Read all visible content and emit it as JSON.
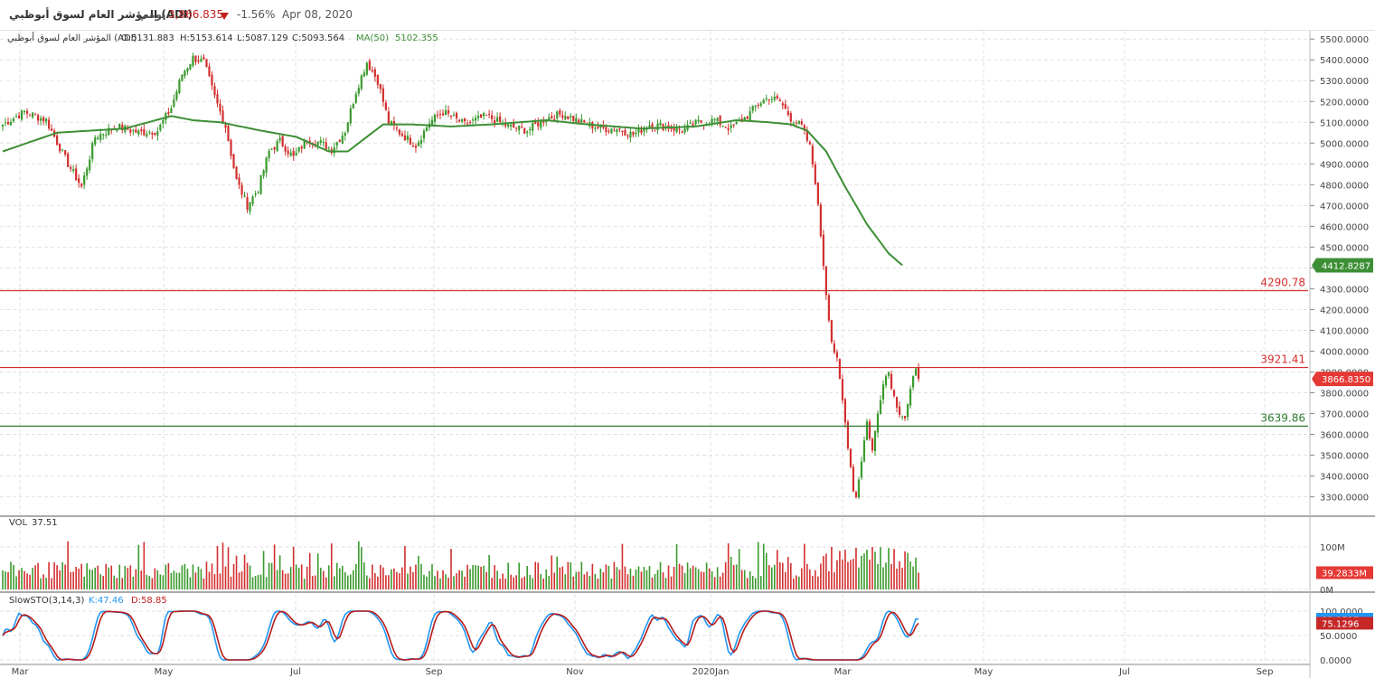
{
  "header": {
    "title": "المؤشر العام لسوق أبوظبي (ADI)",
    "interval": "يومي",
    "last_price": "3,866.835",
    "change_pct": "-1.56%",
    "date": "Apr 08, 2020"
  },
  "ohlc_legend": {
    "title": "المؤشر العام لسوق أبوظبي (ADI)",
    "open": "O:5131.883",
    "high": "H:5153.614",
    "low": "L:5087.129",
    "close": "C:5093.564",
    "ma_label": "MA(50)",
    "ma_value": "5102.355"
  },
  "volume_legend": {
    "label": "VOL",
    "value": "37.51"
  },
  "stoch_legend": {
    "label": "SlowSTO(3,14,3)",
    "k": "K:47.46",
    "d": "D:58.85"
  },
  "colors": {
    "up": "#3a9a2e",
    "down": "#d32f2f",
    "ma": "#3d8f35",
    "k_line": "#2196f3",
    "d_line": "#b71c1c",
    "grid": "#e2e2e2"
  },
  "chart_data": {
    "type": "candlestick",
    "x_axis_labels": [
      "Mar",
      "May",
      "Jul",
      "Sep",
      "Nov",
      "2020Jan",
      "Mar",
      "May",
      "Jul",
      "Sep"
    ],
    "price_axis": {
      "ticks": [
        "5500.0000",
        "5400.0000",
        "5300.0000",
        "5200.0000",
        "5100.0000",
        "5000.0000",
        "4900.0000",
        "4800.0000",
        "4700.0000",
        "4600.0000",
        "4500.0000",
        "4400.0000",
        "4300.0000",
        "4200.0000",
        "4100.0000",
        "4000.0000",
        "3900.0000",
        "3800.0000",
        "3700.0000",
        "3600.0000",
        "3500.0000",
        "3400.0000",
        "3300.0000"
      ],
      "ylim": [
        3220,
        5540
      ]
    },
    "price_path": [
      [
        0,
        5090
      ],
      [
        8,
        5150
      ],
      [
        16,
        5110
      ],
      [
        24,
        4900
      ],
      [
        29,
        4790
      ],
      [
        34,
        5030
      ],
      [
        42,
        5080
      ],
      [
        50,
        5050
      ],
      [
        57,
        5060
      ],
      [
        62,
        5170
      ],
      [
        66,
        5330
      ],
      [
        70,
        5410
      ],
      [
        74,
        5390
      ],
      [
        78,
        5220
      ],
      [
        82,
        5080
      ],
      [
        86,
        4820
      ],
      [
        90,
        4700
      ],
      [
        94,
        4780
      ],
      [
        98,
        4960
      ],
      [
        102,
        5010
      ],
      [
        107,
        4930
      ],
      [
        112,
        5020
      ],
      [
        117,
        5000
      ],
      [
        121,
        4970
      ],
      [
        126,
        5060
      ],
      [
        130,
        5250
      ],
      [
        134,
        5390
      ],
      [
        138,
        5300
      ],
      [
        142,
        5100
      ],
      [
        147,
        5040
      ],
      [
        152,
        4990
      ],
      [
        157,
        5100
      ],
      [
        162,
        5150
      ],
      [
        170,
        5090
      ],
      [
        178,
        5130
      ],
      [
        186,
        5080
      ],
      [
        193,
        5060
      ],
      [
        200,
        5120
      ],
      [
        206,
        5140
      ],
      [
        213,
        5100
      ],
      [
        220,
        5070
      ],
      [
        226,
        5070
      ],
      [
        232,
        5040
      ],
      [
        238,
        5090
      ],
      [
        244,
        5080
      ],
      [
        250,
        5060
      ],
      [
        256,
        5100
      ],
      [
        262,
        5110
      ],
      [
        268,
        5070
      ],
      [
        274,
        5130
      ],
      [
        278,
        5190
      ],
      [
        282,
        5220
      ],
      [
        286,
        5200
      ],
      [
        290,
        5120
      ],
      [
        294,
        5080
      ],
      [
        297,
        4980
      ],
      [
        299,
        4820
      ],
      [
        301,
        4560
      ],
      [
        303,
        4280
      ],
      [
        305,
        4050
      ],
      [
        307,
        3950
      ],
      [
        309,
        3760
      ],
      [
        311,
        3550
      ],
      [
        313,
        3340
      ],
      [
        314,
        3300
      ],
      [
        316,
        3480
      ],
      [
        318,
        3660
      ],
      [
        320,
        3520
      ],
      [
        322,
        3700
      ],
      [
        324,
        3860
      ],
      [
        326,
        3900
      ],
      [
        328,
        3780
      ],
      [
        330,
        3710
      ],
      [
        332,
        3680
      ],
      [
        334,
        3800
      ],
      [
        336,
        3930
      ],
      [
        337,
        3866.835
      ]
    ],
    "ma50": [
      [
        0,
        4960
      ],
      [
        20,
        5050
      ],
      [
        45,
        5070
      ],
      [
        62,
        5130
      ],
      [
        70,
        5110
      ],
      [
        80,
        5100
      ],
      [
        95,
        5060
      ],
      [
        108,
        5030
      ],
      [
        120,
        4960
      ],
      [
        127,
        4960
      ],
      [
        133,
        5020
      ],
      [
        140,
        5090
      ],
      [
        150,
        5090
      ],
      [
        165,
        5080
      ],
      [
        180,
        5090
      ],
      [
        200,
        5110
      ],
      [
        215,
        5090
      ],
      [
        235,
        5070
      ],
      [
        255,
        5080
      ],
      [
        270,
        5110
      ],
      [
        282,
        5100
      ],
      [
        290,
        5090
      ],
      [
        296,
        5060
      ],
      [
        303,
        4960
      ],
      [
        310,
        4790
      ],
      [
        318,
        4610
      ],
      [
        326,
        4470
      ],
      [
        331,
        4412.8287
      ]
    ],
    "price_highlights": [
      {
        "label": "4412.8287",
        "value": 4412.8287,
        "color": "#3d8f35"
      },
      {
        "label": "3866.8350",
        "value": 3866.835,
        "color": "#e53935"
      }
    ],
    "horizontal_lines": [
      {
        "label": "4290.78",
        "value": 4290.78,
        "color": "#d32f2f"
      },
      {
        "label": "3921.41",
        "value": 3921.41,
        "color": "#d32f2f"
      },
      {
        "label": "3639.86",
        "value": 3639.86,
        "color": "#2e7d32"
      }
    ],
    "volume": {
      "axis_ticks": [
        "100M",
        "0M"
      ],
      "ylim": [
        0,
        140
      ],
      "last_label": "39.2833M",
      "last_value": 39.2833
    },
    "stochastic": {
      "axis_labels": [
        "100.0000",
        "50.0000",
        "0.0000"
      ],
      "ylim": [
        0,
        100
      ],
      "k_label": "83.3527",
      "d_label": "75.1296",
      "k_value": 83.3527,
      "d_value": 75.1296
    }
  }
}
